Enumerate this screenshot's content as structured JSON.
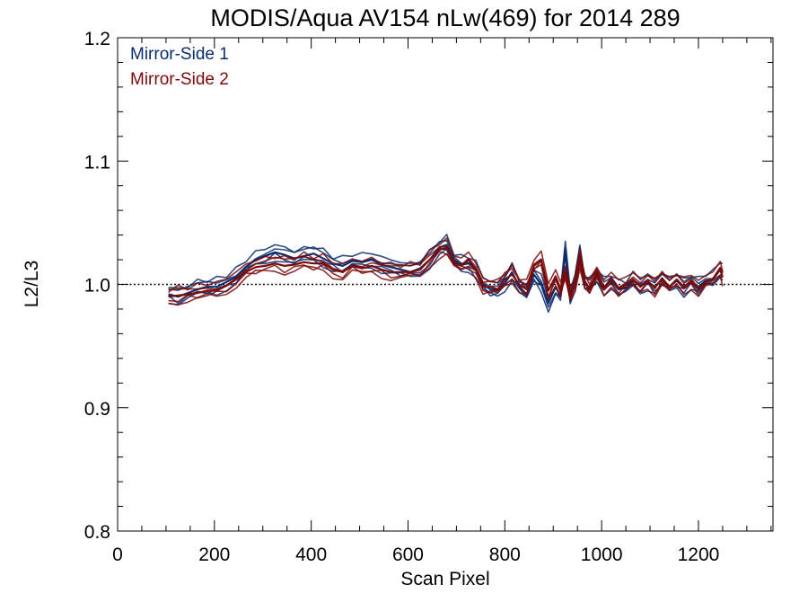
{
  "chart_data": {
    "type": "line",
    "title": "MODIS/Aqua AV154 nLw(469) for 2014 289",
    "xlabel": "Scan Pixel",
    "ylabel": "L2/L3",
    "xlim": [
      0,
      1354
    ],
    "ylim": [
      0.8,
      1.2
    ],
    "x_ticks": [
      0,
      200,
      400,
      600,
      800,
      1000,
      1200
    ],
    "x_tick_labels": [
      "0",
      "200",
      "400",
      "600",
      "800",
      "1000",
      "1200"
    ],
    "y_ticks": [
      0.8,
      0.9,
      1.0,
      1.1,
      1.2
    ],
    "y_tick_labels": [
      "0.8",
      "0.9",
      "1.0",
      "1.1",
      "1.2"
    ],
    "reference_line": {
      "y": 1.0,
      "style": "dotted"
    },
    "legend_position": "top-left",
    "colors": {
      "ms1": "#0a2d6e",
      "ms2": "#7a0a0a"
    },
    "x": [
      105,
      125,
      145,
      165,
      185,
      205,
      225,
      245,
      265,
      285,
      305,
      325,
      345,
      365,
      385,
      405,
      425,
      445,
      465,
      485,
      505,
      525,
      545,
      565,
      585,
      605,
      625,
      645,
      665,
      680,
      695,
      710,
      725,
      740,
      755,
      770,
      785,
      800,
      815,
      830,
      845,
      860,
      875,
      890,
      905,
      915,
      925,
      935,
      945,
      955,
      965,
      975,
      990,
      1005,
      1020,
      1035,
      1050,
      1065,
      1080,
      1095,
      1110,
      1125,
      1140,
      1155,
      1170,
      1185,
      1200,
      1215,
      1230,
      1245,
      1250
    ],
    "series": [
      {
        "name": "Mirror-Side 1",
        "color": "#0a2d6e",
        "values": [
          0.992,
          0.99,
          0.993,
          0.996,
          0.998,
          0.998,
          1.002,
          1.006,
          1.014,
          1.02,
          1.023,
          1.026,
          1.024,
          1.021,
          1.023,
          1.025,
          1.021,
          1.017,
          1.015,
          1.019,
          1.018,
          1.02,
          1.016,
          1.014,
          1.012,
          1.01,
          1.013,
          1.02,
          1.03,
          1.032,
          1.02,
          1.016,
          1.017,
          1.012,
          1.0,
          0.996,
          0.995,
          1.001,
          1.01,
          0.998,
          0.992,
          1.008,
          1.0,
          0.985,
          0.998,
          0.99,
          1.028,
          0.99,
          1.002,
          1.025,
          1.0,
          0.998,
          1.007,
          0.998,
          1.003,
          0.996,
          0.997,
          1.003,
          0.999,
          1.002,
          0.998,
          1.004,
          0.998,
          1.003,
          0.997,
          1.002,
          0.998,
          1.003,
          1.004,
          1.013,
          1.01
        ]
      },
      {
        "name": "Mirror-Side 2",
        "color": "#7a0a0a",
        "values": [
          0.99,
          0.991,
          0.992,
          0.993,
          0.995,
          0.995,
          0.999,
          1.004,
          1.01,
          1.014,
          1.015,
          1.017,
          1.015,
          1.016,
          1.018,
          1.017,
          1.017,
          1.012,
          1.01,
          1.015,
          1.013,
          1.015,
          1.012,
          1.01,
          1.01,
          1.01,
          1.012,
          1.02,
          1.028,
          1.03,
          1.018,
          1.015,
          1.02,
          1.012,
          0.998,
          0.998,
          0.996,
          1.004,
          1.008,
          1.0,
          0.996,
          1.015,
          1.02,
          0.995,
          1.006,
          0.995,
          1.01,
          0.99,
          1.0,
          1.02,
          1.003,
          0.996,
          1.01,
          0.996,
          1.005,
          0.997,
          1.0,
          1.004,
          0.998,
          1.003,
          0.997,
          1.005,
          0.998,
          1.004,
          0.998,
          1.003,
          0.996,
          1.002,
          1.004,
          1.012,
          1.006
        ]
      }
    ]
  }
}
